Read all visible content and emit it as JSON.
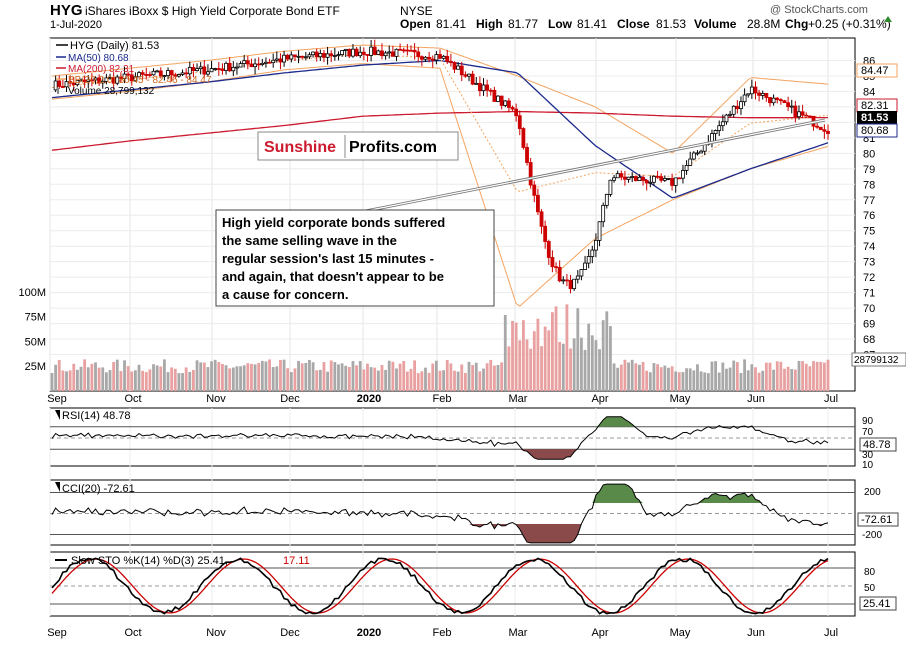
{
  "header": {
    "symbol": "HYG",
    "name": "iShares iBoxx $ High Yield Corporate Bond ETF",
    "exchange": "NYSE",
    "date": "1-Jul-2020",
    "copyright": "@ StockCharts.com",
    "open_label": "Open",
    "open": "81.41",
    "high_label": "High",
    "high": "81.77",
    "low_label": "Low",
    "low": "81.41",
    "close_label": "Close",
    "close": "81.53",
    "volume_label": "Volume",
    "volume": "28.8M",
    "chg_label": "Chg",
    "chg": "+0.25 (+0.31%)"
  },
  "legend": {
    "price": "HYG (Daily) 81.53",
    "ma50": "MA(50) 80.68",
    "ma200": "MA(200) 82.31",
    "bb": "BB(20,2.0) 80.45 - 82.46 - 84.47",
    "volume": "Volume 28,799,132"
  },
  "badges": {
    "bb_upper": "84.47",
    "ma200": "82.31",
    "close": "81.53",
    "ma50": "80.68",
    "volume": "28799132",
    "rsi": "48.78",
    "cci": "-72.61",
    "sto": "25.41"
  },
  "watermark": {
    "part1": "Sunshine",
    "part2": "Profits.com"
  },
  "annotation": {
    "lines": [
      "High yield corporate bonds suffered",
      "the same selling wave in the",
      "regular session's last 15 minutes -",
      "and again, that doesn't appear to be",
      "a cause for concern."
    ]
  },
  "x_axis": {
    "labels": [
      "Sep",
      "Oct",
      "Nov",
      "Dec",
      "2020",
      "Feb",
      "Mar",
      "Apr",
      "May",
      "Jun",
      "Jul"
    ]
  },
  "panels": {
    "rsi": {
      "label": "RSI(14) 48.78",
      "levels": [
        "90",
        "70",
        "50",
        "30",
        "10"
      ]
    },
    "cci": {
      "label": "CCI(20) -72.61",
      "levels": [
        "200",
        "-200"
      ]
    },
    "sto": {
      "label_prefix": "Slow STO %K(14) %D(3) 25.41,",
      "label_d": "17.11",
      "levels": [
        "80",
        "50",
        "20"
      ]
    }
  },
  "colors": {
    "up": "#000000",
    "down": "#cc0000",
    "ma50": "#1c2a8c",
    "ma200": "#cc1a2e",
    "bb": "#f4a460",
    "vol_up": "#a8a8a8",
    "vol_down": "#e8a0a0",
    "pos_fill": "#5a8a4a",
    "neg_fill": "#8a4a4a",
    "sunshine": "#cc1a2e"
  },
  "chart_data": {
    "type": "line",
    "title": "HYG iShares iBoxx $ High Yield Corporate Bond ETF (Daily)",
    "x": [
      "Sep",
      "Oct",
      "Nov",
      "Dec",
      "2020",
      "Feb",
      "Mar",
      "Apr",
      "May",
      "Jun",
      "Jul"
    ],
    "series": [
      {
        "name": "HYG (Daily)",
        "values": [
          84.4,
          84.9,
          85.4,
          86.1,
          86.6,
          86.3,
          82.5,
          78.6,
          78.1,
          84.2,
          81.53
        ]
      },
      {
        "name": "MA(50)",
        "values": [
          83.6,
          84.1,
          84.6,
          85.2,
          85.7,
          86.0,
          85.2,
          80.5,
          77.1,
          79.0,
          80.68
        ]
      },
      {
        "name": "MA(200)",
        "values": [
          80.2,
          80.8,
          81.3,
          81.8,
          82.4,
          82.6,
          82.7,
          82.6,
          82.4,
          82.3,
          82.31
        ]
      },
      {
        "name": "BB upper",
        "values": [
          85.0,
          85.5,
          86.0,
          86.6,
          87.0,
          86.8,
          85.0,
          83.0,
          80.0,
          84.9,
          84.47
        ]
      },
      {
        "name": "BB lower",
        "values": [
          83.5,
          84.0,
          84.6,
          85.4,
          85.8,
          85.5,
          70.0,
          74.5,
          77.0,
          79.0,
          80.45
        ]
      }
    ],
    "ylim": [
      66,
      87
    ],
    "volume": {
      "name": "Volume",
      "labels": [
        "25M",
        "50M",
        "75M",
        "100M"
      ],
      "ylim": [
        0,
        110
      ],
      "unit": "M"
    },
    "rsi": {
      "name": "RSI(14)",
      "last": 48.78,
      "ylim": [
        0,
        100
      ]
    },
    "cci": {
      "name": "CCI(20)",
      "last": -72.61,
      "ylim": [
        -300,
        300
      ]
    },
    "stochastic": {
      "name": "Slow STO %K(14) %D(3)",
      "k_last": 25.41,
      "d_last": 17.11,
      "ylim": [
        0,
        100
      ]
    },
    "grid": true,
    "y_ticks": [
      67,
      68,
      69,
      70,
      71,
      72,
      73,
      74,
      75,
      76,
      77,
      78,
      79,
      80,
      81,
      82,
      83,
      84,
      85,
      86
    ]
  }
}
